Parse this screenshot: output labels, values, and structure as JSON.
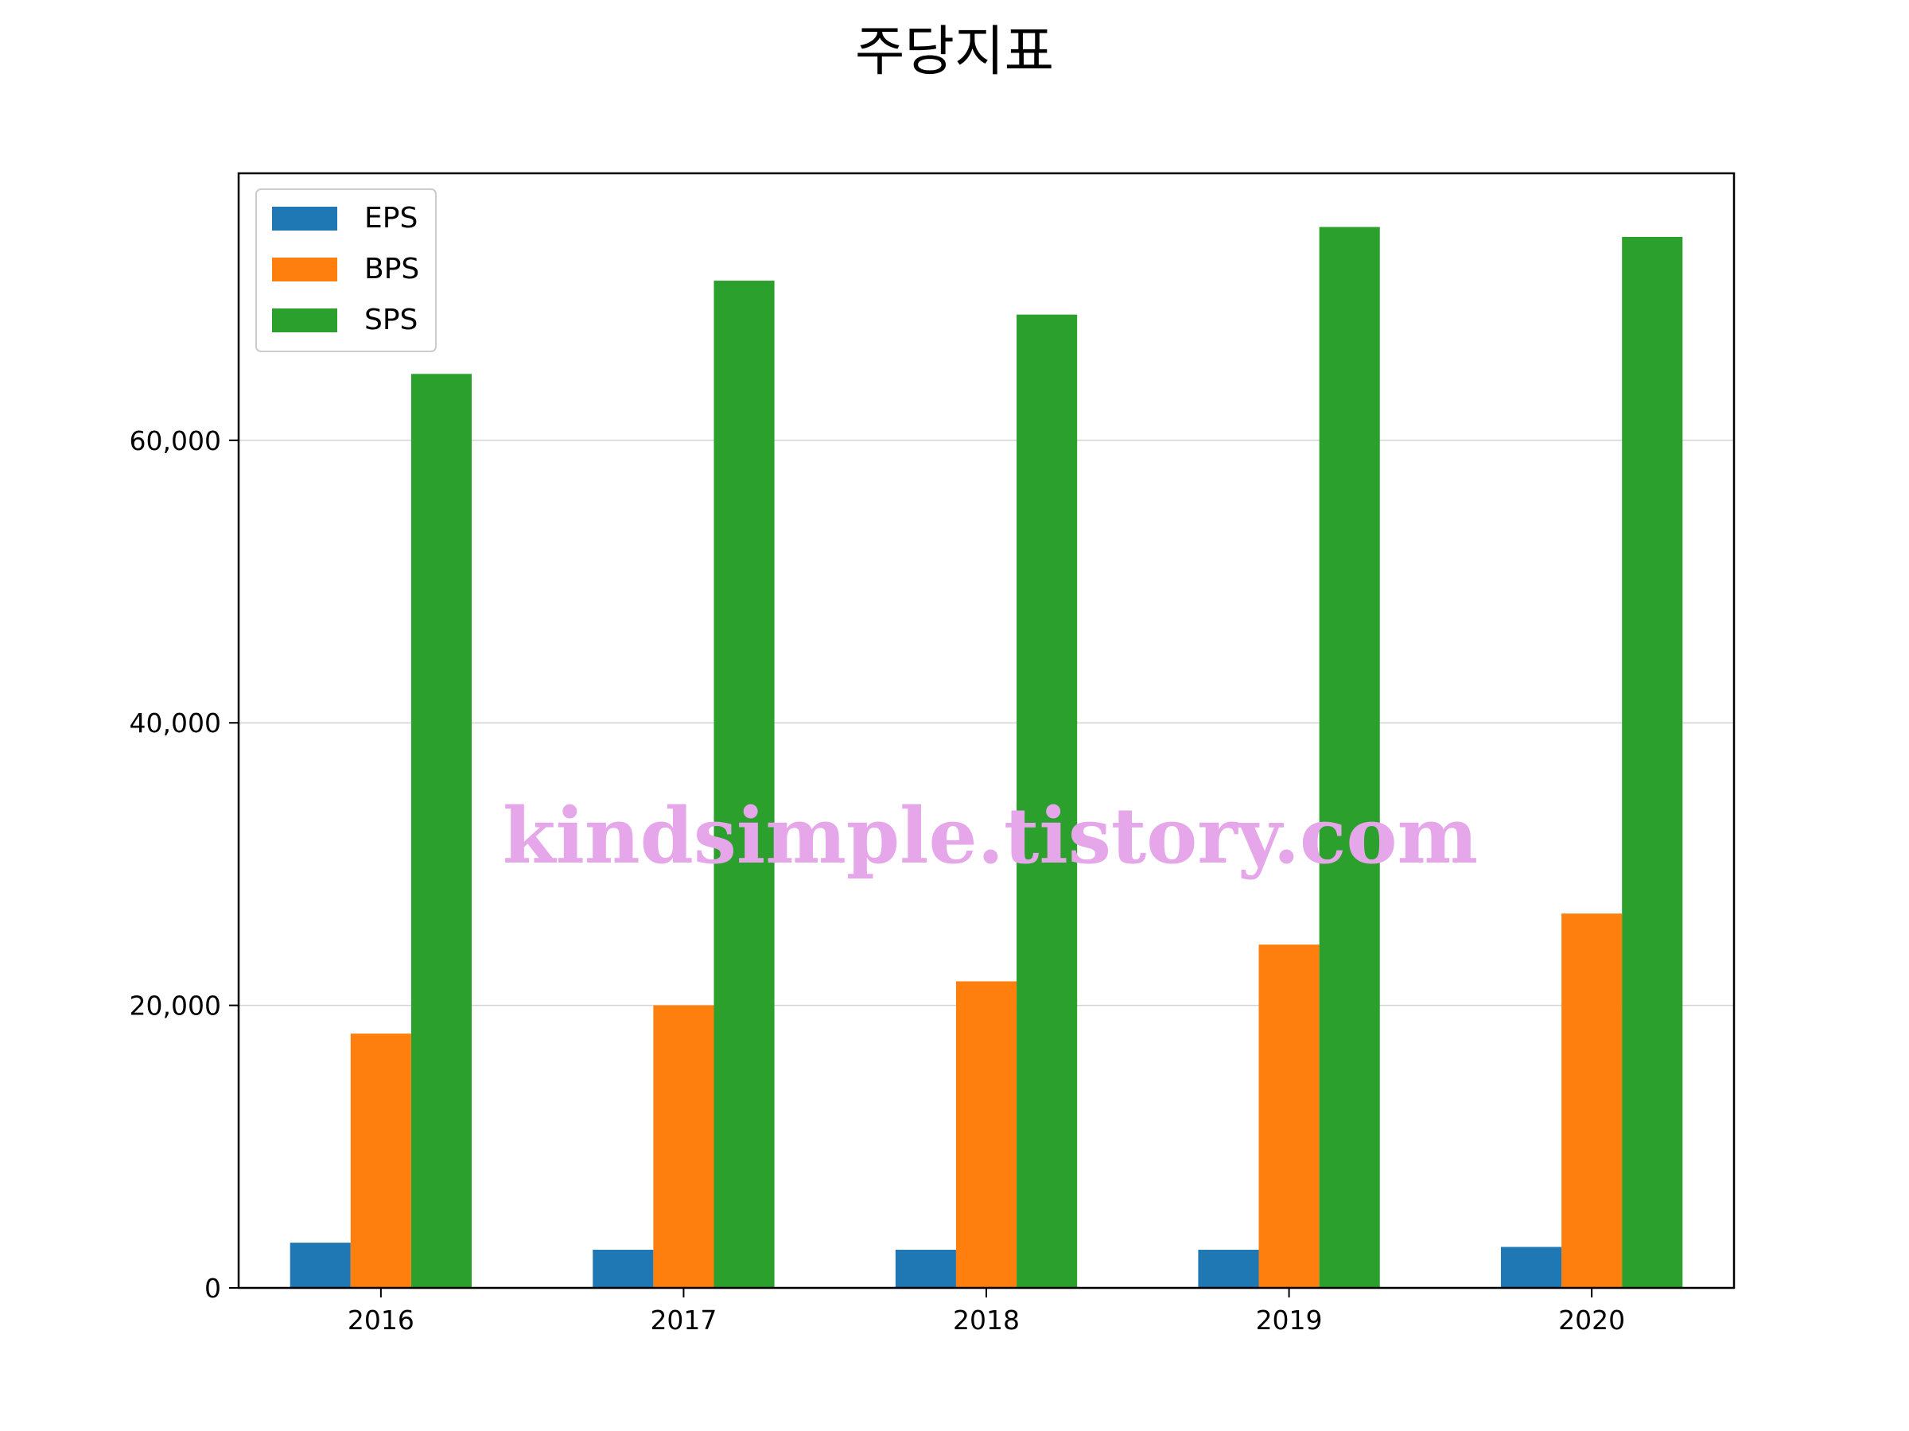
{
  "chart_data": {
    "type": "bar",
    "title": "주당지표",
    "xlabel": "",
    "ylabel": "",
    "categories": [
      "2016",
      "2017",
      "2018",
      "2019",
      "2020"
    ],
    "series": [
      {
        "name": "EPS",
        "color": "#1f77b4",
        "values": [
          3200,
          2700,
          2700,
          2700,
          2900
        ]
      },
      {
        "name": "BPS",
        "color": "#ff7f0e",
        "values": [
          18000,
          20000,
          21700,
          24300,
          26500
        ]
      },
      {
        "name": "SPS",
        "color": "#2ca02c",
        "values": [
          64700,
          71300,
          68900,
          75100,
          74400
        ]
      }
    ],
    "ylim": [
      0,
      78900
    ],
    "yticks": [
      0,
      20000,
      40000,
      60000
    ],
    "ytick_labels": [
      "0",
      "20,000",
      "40,000",
      "60,000"
    ],
    "grid": "horizontal",
    "legend_position": "top-left"
  },
  "watermark": "kindsimple.tistory.com"
}
